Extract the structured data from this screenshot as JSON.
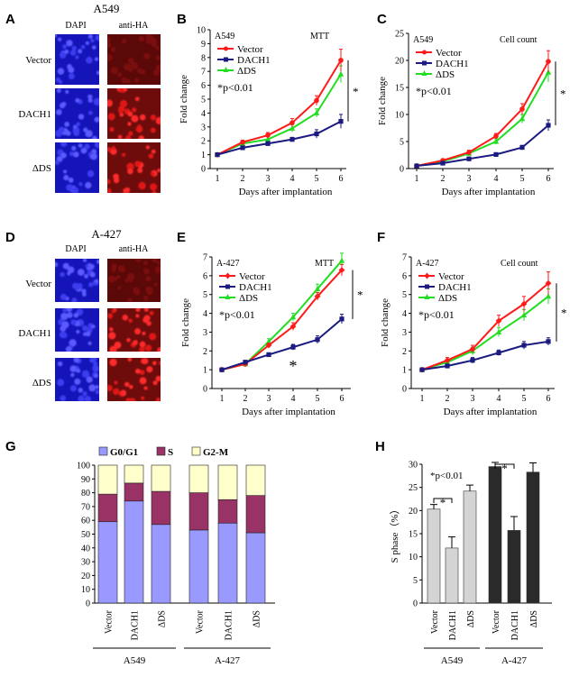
{
  "colors": {
    "red": "#ff1a1a",
    "navy": "#1a1a80",
    "green": "#22dd22",
    "g0g1": "#9999ff",
    "s": "#993366",
    "g2m": "#ffffcc",
    "light_bar": "#d4d4d4",
    "dark_bar": "#2a2a2a"
  },
  "panels": {
    "A": {
      "letter": "A",
      "cell_line": "A549",
      "col_labels": [
        "DAPI",
        "anti-HA"
      ],
      "row_labels": [
        "Vector",
        "DACH1",
        "ΔDS"
      ],
      "image_intensity": [
        [
          1,
          0.15
        ],
        [
          1,
          0.9
        ],
        [
          1,
          1
        ]
      ]
    },
    "D": {
      "letter": "D",
      "cell_line": "A-427",
      "col_labels": [
        "DAPI",
        "anti-HA"
      ],
      "row_labels": [
        "Vector",
        "DACH1",
        "ΔDS"
      ],
      "image_intensity": [
        [
          1,
          0.15
        ],
        [
          1,
          0.85
        ],
        [
          1,
          1
        ]
      ]
    }
  },
  "chart_data": [
    {
      "panel": "B",
      "type": "line",
      "cell_line": "A549",
      "assay": "MTT",
      "xlabel": "Days after implantation",
      "ylabel": "Fold change",
      "x": [
        1,
        2,
        3,
        4,
        5,
        6
      ],
      "xlim": [
        1,
        6
      ],
      "ylim": [
        0,
        10
      ],
      "yticks": [
        0,
        1,
        2,
        3,
        4,
        5,
        6,
        7,
        8,
        9,
        10
      ],
      "series": [
        {
          "name": "Vector",
          "color": "red",
          "marker": "circle",
          "values": [
            1.0,
            1.9,
            2.4,
            3.3,
            4.9,
            7.8
          ],
          "errors": [
            0.1,
            0.15,
            0.2,
            0.3,
            0.35,
            0.8
          ]
        },
        {
          "name": "DACH1",
          "color": "navy",
          "marker": "square",
          "values": [
            1.0,
            1.5,
            1.8,
            2.1,
            2.5,
            3.4
          ],
          "errors": [
            0.1,
            0.1,
            0.15,
            0.15,
            0.3,
            0.5
          ]
        },
        {
          "name": "ΔDS",
          "color": "green",
          "marker": "triangle",
          "values": [
            1.0,
            1.8,
            2.1,
            2.9,
            4.0,
            6.8
          ],
          "errors": [
            0.1,
            0.15,
            0.2,
            0.25,
            0.3,
            0.6
          ]
        }
      ],
      "annotation": "*p<0.01",
      "significance": "*"
    },
    {
      "panel": "C",
      "type": "line",
      "cell_line": "A549",
      "assay": "Cell count",
      "xlabel": "Days after implantation",
      "ylabel": "Fold change",
      "x": [
        1,
        2,
        3,
        4,
        5,
        6
      ],
      "xlim": [
        1,
        6
      ],
      "ylim": [
        0,
        25
      ],
      "yticks": [
        0,
        5,
        10,
        15,
        20,
        25
      ],
      "series": [
        {
          "name": "Vector",
          "color": "red",
          "marker": "circle",
          "values": [
            0.5,
            1.5,
            3.0,
            6.0,
            11.0,
            19.8
          ],
          "errors": [
            0.2,
            0.3,
            0.4,
            0.5,
            1.0,
            2.0
          ]
        },
        {
          "name": "DACH1",
          "color": "navy",
          "marker": "square",
          "values": [
            0.5,
            1.0,
            1.8,
            2.6,
            3.9,
            8.0
          ],
          "errors": [
            0.2,
            0.2,
            0.3,
            0.3,
            0.4,
            1.0
          ]
        },
        {
          "name": "ΔDS",
          "color": "green",
          "marker": "triangle",
          "values": [
            0.5,
            1.3,
            2.8,
            5.0,
            9.2,
            17.8
          ],
          "errors": [
            0.2,
            0.3,
            0.4,
            0.5,
            0.8,
            1.8
          ]
        }
      ],
      "annotation": "*p<0.01",
      "significance": "*"
    },
    {
      "panel": "E",
      "type": "line",
      "cell_line": "A-427",
      "assay": "MTT",
      "xlabel": "Days after implantation",
      "ylabel": "Fold change",
      "x": [
        1,
        2,
        3,
        4,
        5,
        6
      ],
      "xlim": [
        1,
        6
      ],
      "ylim": [
        0,
        7
      ],
      "yticks": [
        0,
        1,
        2,
        3,
        4,
        5,
        6,
        7
      ],
      "series": [
        {
          "name": "Vector",
          "color": "red",
          "marker": "diamond",
          "values": [
            1.0,
            1.3,
            2.3,
            3.3,
            4.9,
            6.3
          ],
          "errors": [
            0.05,
            0.1,
            0.1,
            0.2,
            0.2,
            0.3
          ]
        },
        {
          "name": "DACH1",
          "color": "navy",
          "marker": "square",
          "values": [
            1.0,
            1.4,
            1.8,
            2.2,
            2.6,
            3.7
          ],
          "errors": [
            0.05,
            0.1,
            0.1,
            0.15,
            0.2,
            0.25
          ]
        },
        {
          "name": "ΔDS",
          "color": "green",
          "marker": "triangle",
          "values": [
            1.0,
            1.3,
            2.5,
            3.8,
            5.3,
            6.8
          ],
          "errors": [
            0.05,
            0.1,
            0.15,
            0.2,
            0.25,
            0.4
          ]
        }
      ],
      "annotation": "*p<0.01",
      "significance": "*",
      "extra_mark": {
        "text": "*",
        "x": 4,
        "y": 1.2
      }
    },
    {
      "panel": "F",
      "type": "line",
      "cell_line": "A-427",
      "assay": "Cell count",
      "xlabel": "Days after implantation",
      "ylabel": "Fold change",
      "x": [
        1,
        2,
        3,
        4,
        5,
        6
      ],
      "xlim": [
        1,
        6
      ],
      "ylim": [
        0,
        7
      ],
      "yticks": [
        0,
        1,
        2,
        3,
        4,
        5,
        6,
        7
      ],
      "series": [
        {
          "name": "Vector",
          "color": "red",
          "marker": "diamond",
          "values": [
            1.0,
            1.5,
            2.1,
            3.6,
            4.5,
            5.6
          ],
          "errors": [
            0.1,
            0.15,
            0.2,
            0.3,
            0.4,
            0.6
          ]
        },
        {
          "name": "DACH1",
          "color": "navy",
          "marker": "square",
          "values": [
            1.0,
            1.2,
            1.5,
            1.9,
            2.3,
            2.5
          ],
          "errors": [
            0.1,
            0.1,
            0.15,
            0.15,
            0.2,
            0.2
          ]
        },
        {
          "name": "ΔDS",
          "color": "green",
          "marker": "triangle",
          "values": [
            1.0,
            1.4,
            2.0,
            3.0,
            3.9,
            4.9
          ],
          "errors": [
            0.1,
            0.15,
            0.2,
            0.25,
            0.3,
            0.4
          ]
        }
      ],
      "annotation": "*p<0.01",
      "significance": "*"
    },
    {
      "panel": "G",
      "type": "bar",
      "stacked": true,
      "ylim": [
        0,
        100
      ],
      "yticks": [
        0,
        10,
        20,
        30,
        40,
        50,
        60,
        70,
        80,
        90,
        100
      ],
      "groups": [
        {
          "name": "A549",
          "categories": [
            "Vector",
            "DACH1",
            "ΔDS"
          ]
        },
        {
          "name": "A-427",
          "categories": [
            "Vector",
            "DACH1",
            "ΔDS"
          ]
        }
      ],
      "series": [
        {
          "name": "G0/G1",
          "color": "g0g1",
          "values": [
            59,
            74,
            57,
            53,
            58,
            51
          ]
        },
        {
          "name": "S",
          "color": "s",
          "values": [
            20,
            13,
            24,
            27,
            17,
            27
          ]
        },
        {
          "name": "G2-M",
          "color": "g2m",
          "values": [
            21,
            13,
            19,
            20,
            25,
            22
          ]
        }
      ]
    },
    {
      "panel": "H",
      "type": "bar",
      "ylabel": "S phase（%）",
      "ylim": [
        0,
        30
      ],
      "yticks": [
        0,
        5,
        10,
        15,
        20,
        25,
        30
      ],
      "groups": [
        {
          "name": "A549",
          "categories": [
            "Vector",
            "DACH1",
            "ΔDS"
          ],
          "values": [
            20.3,
            11.9,
            24.2
          ],
          "errors": [
            1.0,
            2.4,
            1.3
          ],
          "color": "light_bar"
        },
        {
          "name": "A-427",
          "categories": [
            "Vector",
            "DACH1",
            "ΔDS"
          ],
          "values": [
            29.5,
            15.7,
            28.3
          ],
          "errors": [
            0.9,
            3.0,
            2.0
          ],
          "color": "dark_bar"
        }
      ],
      "annotation": "*p<0.01",
      "significance": "*"
    }
  ],
  "letters": {
    "B": "B",
    "C": "C",
    "E": "E",
    "F": "F",
    "G": "G",
    "H": "H"
  }
}
